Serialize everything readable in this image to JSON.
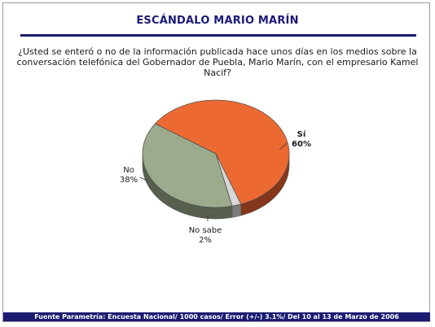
{
  "page": {
    "title": "ESCÁNDALO MARIO MARÍN",
    "question": "¿Usted se enteró o no de la información publicada hace unos días en los medios sobre la conversación telefónica del Gobernador de Puebla, Mario Marín, con el empresario Kamel Nacif?",
    "footer": "Fuente Parametría: Encuesta Nacional/ 1000 casos/ Error (+/-) 3.1%/ Del 10 al 13 de Marzo  de 2006"
  },
  "chart_data": {
    "type": "pie",
    "title": "",
    "labels": [
      "Sí",
      "No sabe",
      "No"
    ],
    "values": [
      60,
      2,
      38
    ],
    "value_labels": [
      "60%",
      "2%",
      "38%"
    ],
    "colors": [
      "#ec6a32",
      "#d7d7d7",
      "#9caa8d"
    ],
    "side_colors": [
      "#86361a",
      "#7c7c7c",
      "#56604d"
    ],
    "legend": "none"
  }
}
